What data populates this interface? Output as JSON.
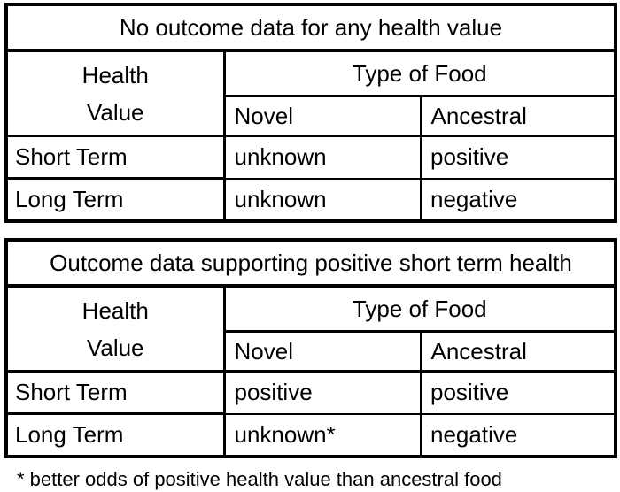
{
  "colors": {
    "background": "#ffffff",
    "border": "#000000",
    "text": "#000000"
  },
  "tables": [
    {
      "title": "No outcome data for any health value",
      "row_dimension": [
        "Health",
        "Value"
      ],
      "col_group_header": "Type of Food",
      "columns": [
        "Novel",
        "Ancestral"
      ],
      "rows": [
        {
          "label": "Short Term",
          "novel": "unknown",
          "ancestral": "positive"
        },
        {
          "label": "Long Term",
          "novel": "unknown",
          "ancestral": "negative"
        }
      ]
    },
    {
      "title": "Outcome data supporting positive short term health",
      "row_dimension": [
        "Health",
        "Value"
      ],
      "col_group_header": "Type of Food",
      "columns": [
        "Novel",
        "Ancestral"
      ],
      "rows": [
        {
          "label": "Short Term",
          "novel": "positive",
          "ancestral": "positive"
        },
        {
          "label": "Long Term",
          "novel": "unknown*",
          "ancestral": "negative"
        }
      ]
    }
  ],
  "footnote": "* better odds of positive health value than ancestral food"
}
